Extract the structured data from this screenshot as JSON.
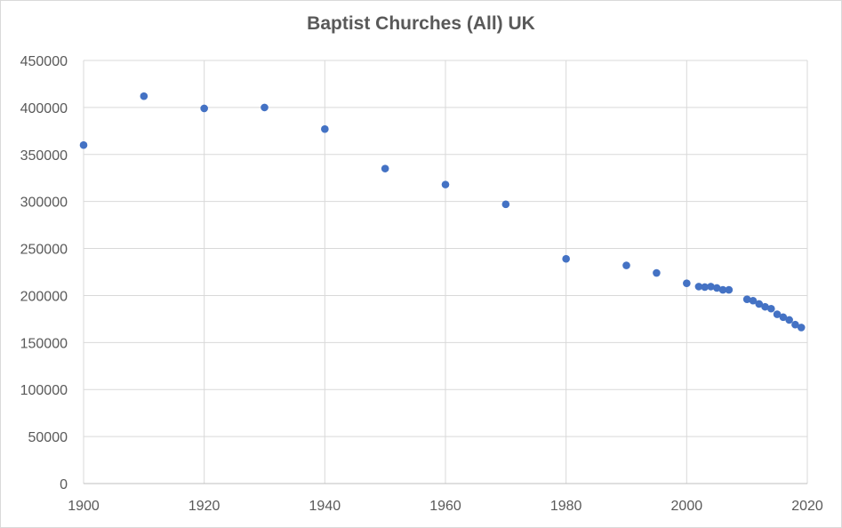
{
  "chart_data": {
    "type": "scatter",
    "title": "Baptist Churches (All) UK",
    "xlabel": "",
    "ylabel": "",
    "xlim": [
      1900,
      2020
    ],
    "ylim": [
      0,
      450000
    ],
    "x_ticks": [
      1900,
      1920,
      1940,
      1960,
      1980,
      2000,
      2020
    ],
    "y_ticks": [
      0,
      50000,
      100000,
      150000,
      200000,
      250000,
      300000,
      350000,
      400000,
      450000
    ],
    "grid": true,
    "legend": "none",
    "marker_color": "#4472c4",
    "points": [
      {
        "x": 1900,
        "y": 360000
      },
      {
        "x": 1910,
        "y": 412000
      },
      {
        "x": 1920,
        "y": 399000
      },
      {
        "x": 1930,
        "y": 400000
      },
      {
        "x": 1940,
        "y": 377000
      },
      {
        "x": 1950,
        "y": 335000
      },
      {
        "x": 1960,
        "y": 318000
      },
      {
        "x": 1970,
        "y": 297000
      },
      {
        "x": 1980,
        "y": 239000
      },
      {
        "x": 1990,
        "y": 232000
      },
      {
        "x": 1995,
        "y": 224000
      },
      {
        "x": 2000,
        "y": 213000
      },
      {
        "x": 2002,
        "y": 209500
      },
      {
        "x": 2003,
        "y": 209000
      },
      {
        "x": 2004,
        "y": 209500
      },
      {
        "x": 2005,
        "y": 208000
      },
      {
        "x": 2006,
        "y": 206000
      },
      {
        "x": 2007,
        "y": 206000
      },
      {
        "x": 2010,
        "y": 196000
      },
      {
        "x": 2011,
        "y": 194500
      },
      {
        "x": 2012,
        "y": 191000
      },
      {
        "x": 2013,
        "y": 188000
      },
      {
        "x": 2014,
        "y": 186000
      },
      {
        "x": 2015,
        "y": 180000
      },
      {
        "x": 2016,
        "y": 177000
      },
      {
        "x": 2017,
        "y": 174000
      },
      {
        "x": 2018,
        "y": 169000
      },
      {
        "x": 2019,
        "y": 166000
      }
    ]
  }
}
